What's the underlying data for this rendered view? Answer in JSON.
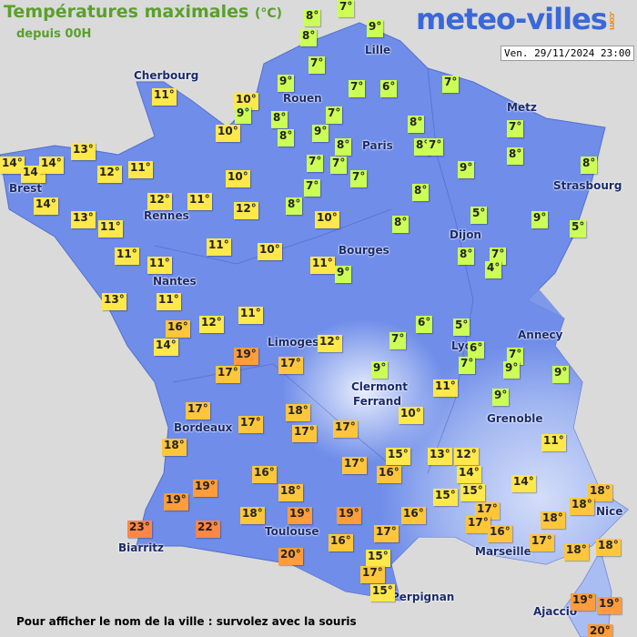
{
  "header": {
    "title": "Températures maximales",
    "unit": "(°C)",
    "subtitle": "depuis 00H",
    "logo": "meteo-villes",
    "logo_suffix": ".com",
    "date": "Ven. 29/11/2024 23:00"
  },
  "cities": [
    "Cherbourg",
    "Lille",
    "Rouen",
    "Paris",
    "Metz",
    "Strasbourg",
    "Brest",
    "Rennes",
    "Dijon",
    "Bourges",
    "Nantes",
    "Limoges",
    "Annecy",
    "Lyon",
    "Clermont",
    "Ferrand",
    "Grenoble",
    "Bordeaux",
    "Nice",
    "Toulouse",
    "Biarritz",
    "Marseille",
    "Ajaccio",
    "Perpignan"
  ],
  "temperatures": [
    "8°",
    "7°",
    "9°",
    "8°",
    "7°",
    "11°",
    "9°",
    "10°",
    "9°",
    "8°",
    "8°",
    "10°",
    "7°",
    "6°",
    "7°",
    "7°",
    "9°",
    "8°",
    "8°",
    "8°",
    "7°",
    "7°",
    "8°",
    "13°",
    "14°",
    "14°",
    "14°",
    "12°",
    "11°",
    "7°",
    "7°",
    "7°",
    "9°",
    "8°",
    "10°",
    "7°",
    "8°",
    "14°",
    "12°",
    "11°",
    "12°",
    "8°",
    "13°",
    "10°",
    "8°",
    "5°",
    "9°",
    "5°",
    "11°",
    "11°",
    "10°",
    "11°",
    "11°",
    "8°",
    "7°",
    "4°",
    "11°",
    "9°",
    "13°",
    "11°",
    "11°",
    "12°",
    "6°",
    "5°",
    "16°",
    "7°",
    "6°",
    "14°",
    "12°",
    "19°",
    "7°",
    "9°",
    "7°",
    "17°",
    "17°",
    "9°",
    "9°",
    "11°",
    "9°",
    "17°",
    "18°",
    "10°",
    "17°",
    "17°",
    "17°",
    "18°",
    "11°",
    "17°",
    "15°",
    "13°",
    "12°",
    "16°",
    "16°",
    "14°",
    "14°",
    "19°",
    "18°",
    "15°",
    "15°",
    "18°",
    "19°",
    "18°",
    "17°",
    "18°",
    "19°",
    "19°",
    "16°",
    "17°",
    "18°",
    "16°",
    "23°",
    "22°",
    "17°",
    "17°",
    "16°",
    "18°",
    "18°",
    "20°",
    "15°",
    "17°",
    "15°",
    "19°",
    "19°",
    "20°"
  ],
  "footer": "Pour afficher le nom de la ville : survolez avec la souris"
}
